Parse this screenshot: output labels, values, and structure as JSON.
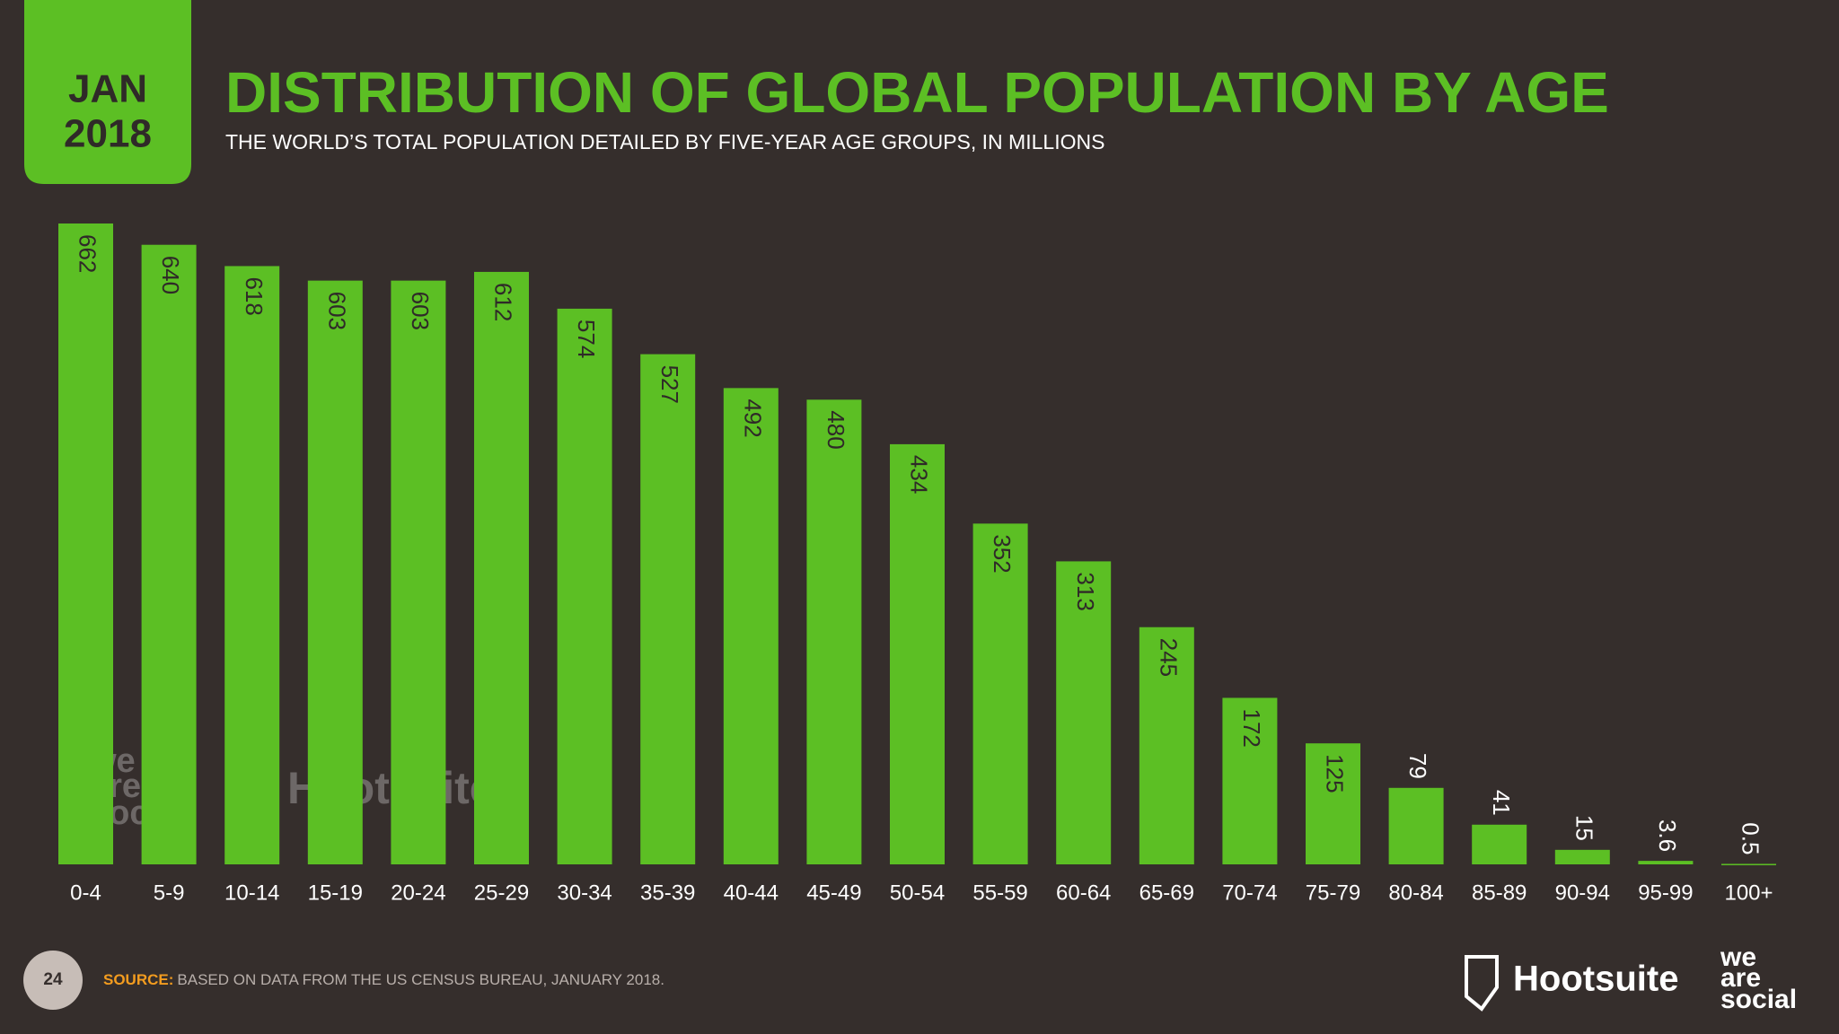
{
  "badge": {
    "month": "JAN",
    "year": "2018"
  },
  "chart_data": {
    "type": "bar",
    "title": "DISTRIBUTION OF GLOBAL POPULATION BY AGE",
    "subtitle": "THE WORLD’S TOTAL POPULATION DETAILED BY FIVE-YEAR AGE GROUPS, IN MILLIONS",
    "categories": [
      "0-4",
      "5-9",
      "10-14",
      "15-19",
      "20-24",
      "25-29",
      "30-34",
      "35-39",
      "40-44",
      "45-49",
      "50-54",
      "55-59",
      "60-64",
      "65-69",
      "70-74",
      "75-79",
      "80-84",
      "85-89",
      "90-94",
      "95-99",
      "100+"
    ],
    "values": [
      662,
      640,
      618,
      603,
      603,
      612,
      574,
      527,
      492,
      480,
      434,
      352,
      313,
      245,
      172,
      125,
      79,
      41,
      15,
      3.6,
      0.5
    ],
    "color": "#5cbf24"
  },
  "footer": {
    "page": "24",
    "source_label": "SOURCE:",
    "source": "BASED ON DATA FROM THE US CENSUS BUREAU, JANUARY 2018."
  },
  "logos": {
    "hootsuite": "Hootsuite",
    "we_are_social": [
      "we",
      "are",
      "social"
    ]
  }
}
